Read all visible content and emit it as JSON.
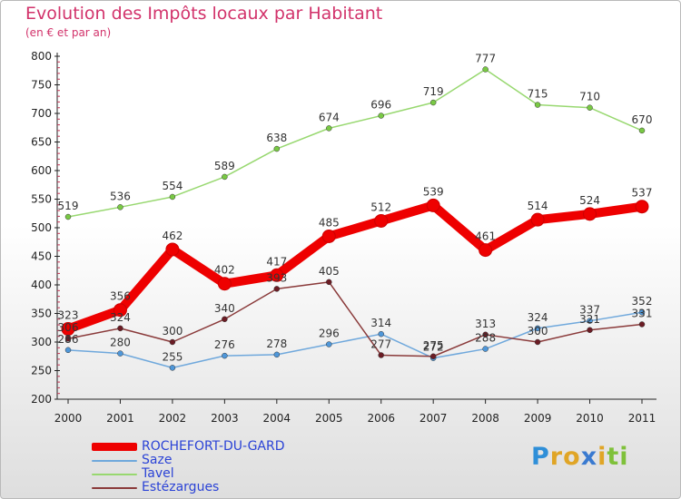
{
  "title": "Evolution des Impôts locaux par Habitant",
  "subtitle": "(en € et par an)",
  "logo": {
    "letters": [
      {
        "ch": "P",
        "color": "#2f8fd8"
      },
      {
        "ch": "r",
        "color": "#e0a526"
      },
      {
        "ch": "o",
        "color": "#e0a526"
      },
      {
        "ch": "x",
        "color": "#3a7ad0"
      },
      {
        "ch": "i",
        "color": "#e0a526"
      },
      {
        "ch": "t",
        "color": "#7fc13a"
      },
      {
        "ch": "i",
        "color": "#7fc13a"
      }
    ]
  },
  "chart_data": {
    "type": "line",
    "title": "Evolution des Impôts locaux par Habitant",
    "subtitle": "(en € et par an)",
    "xlabel": "",
    "ylabel": "",
    "x": [
      "2000",
      "2001",
      "2002",
      "2003",
      "2004",
      "2005",
      "2006",
      "2007",
      "2008",
      "2009",
      "2010",
      "2011"
    ],
    "ylim": [
      200,
      800
    ],
    "yticks": [
      200,
      250,
      300,
      350,
      400,
      450,
      500,
      550,
      600,
      650,
      700,
      750,
      800
    ],
    "grid": false,
    "legend_position": "bottom-left",
    "series": [
      {
        "name": "ROCHEFORT-DU-GARD",
        "color": "#ee0000",
        "marker_color": "#ee0000",
        "values": [
          323,
          356,
          462,
          402,
          417,
          485,
          512,
          539,
          461,
          514,
          524,
          537
        ]
      },
      {
        "name": "Saze",
        "color": "#6fa8dc",
        "marker_color": "#4f97d9",
        "values": [
          286,
          280,
          255,
          276,
          278,
          296,
          314,
          272,
          288,
          324,
          337,
          352
        ]
      },
      {
        "name": "Tavel",
        "color": "#98d870",
        "marker_color": "#79c944",
        "values": [
          519,
          536,
          554,
          589,
          638,
          674,
          696,
          719,
          777,
          715,
          710,
          670
        ]
      },
      {
        "name": "Estézargues",
        "color": "#8a3a3a",
        "marker_color": "#6b1c24",
        "values": [
          306,
          324,
          300,
          340,
          393,
          405,
          277,
          275,
          313,
          300,
          321,
          331
        ]
      }
    ]
  }
}
